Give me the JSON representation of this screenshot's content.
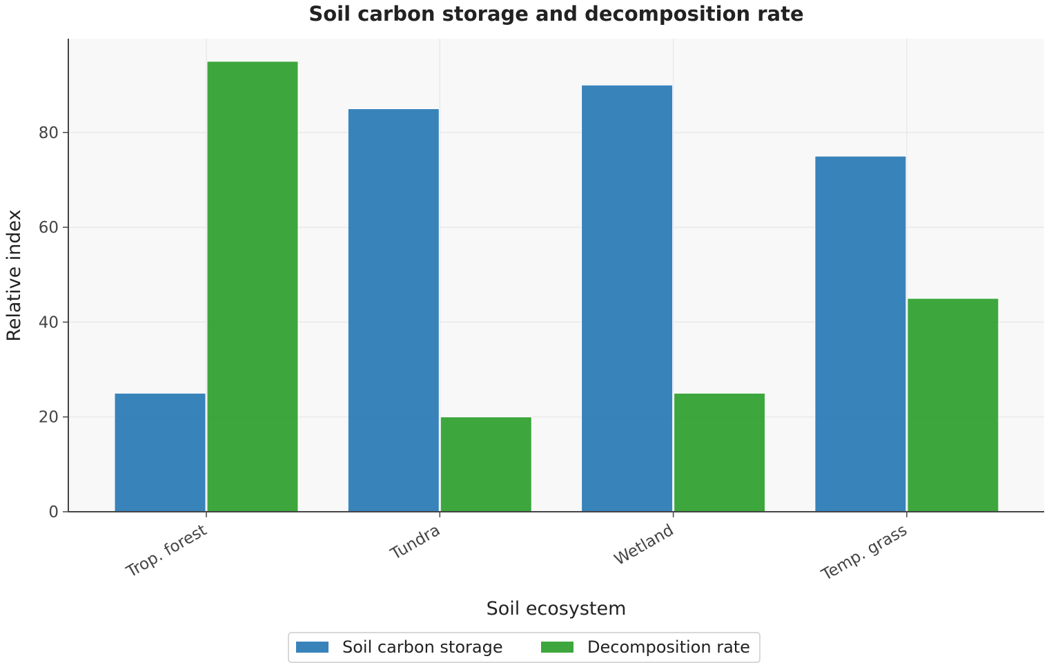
{
  "chart_data": {
    "type": "bar",
    "title": "Soil carbon storage and decomposition rate",
    "xlabel": "Soil ecosystem",
    "ylabel": "Relative index",
    "categories": [
      "Trop. forest",
      "Tundra",
      "Wetland",
      "Temp. grass"
    ],
    "series": [
      {
        "name": "Soil carbon storage",
        "values": [
          25,
          85,
          90,
          75
        ],
        "color": "#2878b5"
      },
      {
        "name": "Decomposition rate",
        "values": [
          95,
          20,
          25,
          45
        ],
        "color": "#2ca02c"
      }
    ],
    "ylim": [
      0,
      100
    ],
    "yticks": [
      0,
      20,
      40,
      60,
      80
    ],
    "grid": true,
    "legend_position": "bottom-center",
    "plot_background": "#f8f8f8",
    "gridline_color": "#e6e6e6"
  }
}
